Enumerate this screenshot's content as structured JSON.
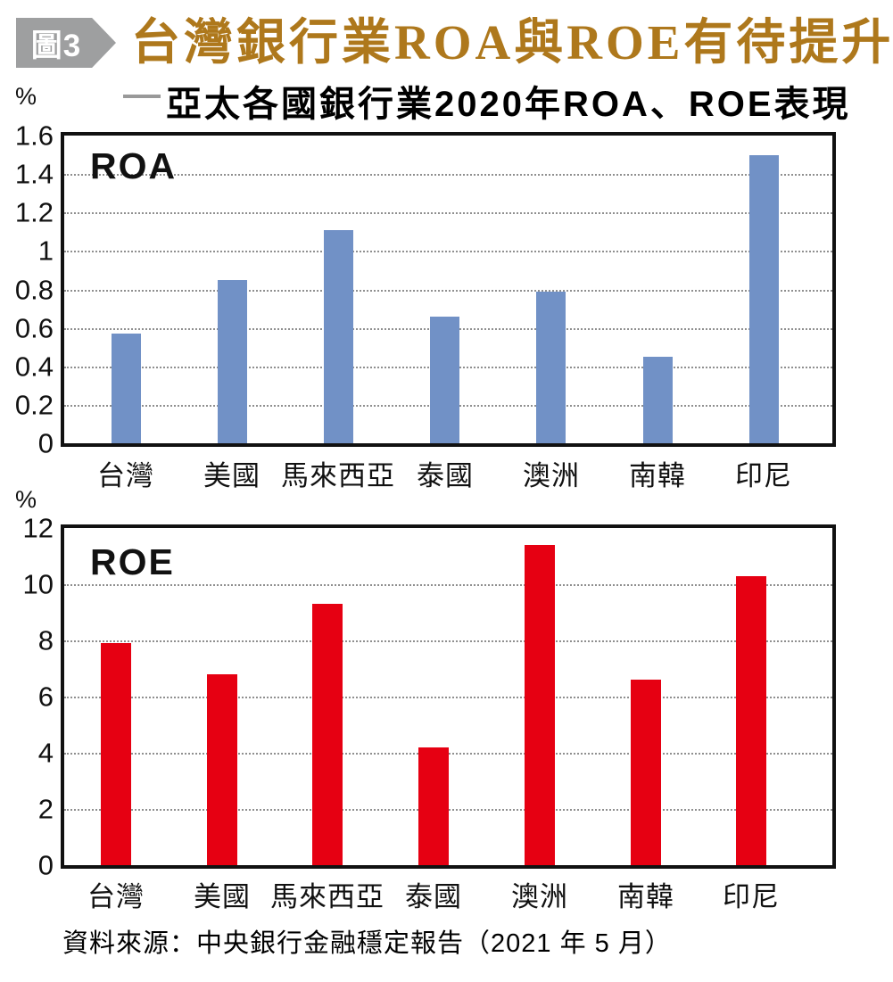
{
  "header": {
    "badge": "圖3",
    "title": "台灣銀行業ROA與ROE有待提升",
    "subtitle": "亞太各國銀行業2020年ROA、ROE表現"
  },
  "footer": {
    "source": "資料來源：中央銀行金融穩定報告（2021 年 5 月）"
  },
  "colors": {
    "title_gold": "#ae781c",
    "badge_gray": "#9e9fa0",
    "roa_bar_blue": "#7191c6",
    "roe_bar_red": "#e60012",
    "gridline_gray": "#8f8f8f",
    "axis_black": "#111111"
  },
  "chart_data": [
    {
      "type": "bar",
      "title": "ROA",
      "unit": "%",
      "categories": [
        "台灣",
        "美國",
        "馬來西亞",
        "泰國",
        "澳洲",
        "南韓",
        "印尼"
      ],
      "values": [
        0.57,
        0.85,
        1.11,
        0.66,
        0.79,
        0.45,
        1.5
      ],
      "ylim": [
        0,
        1.6
      ],
      "yticks": [
        "0",
        "0.2",
        "0.4",
        "0.6",
        "0.8",
        "1",
        "1.2",
        "1.4",
        "1.6"
      ],
      "grid": "horizontal-dotted",
      "legend": "none",
      "bar_color": "#7191c6"
    },
    {
      "type": "bar",
      "title": "ROE",
      "unit": "%",
      "categories": [
        "台灣",
        "美國",
        "馬來西亞",
        "泰國",
        "澳洲",
        "南韓",
        "印尼"
      ],
      "values": [
        7.9,
        6.8,
        9.3,
        4.2,
        11.4,
        6.6,
        10.3
      ],
      "ylim": [
        0,
        12
      ],
      "yticks": [
        "0",
        "2",
        "4",
        "6",
        "8",
        "10",
        "12"
      ],
      "grid": "horizontal-dotted",
      "legend": "none",
      "bar_color": "#e60012"
    }
  ]
}
